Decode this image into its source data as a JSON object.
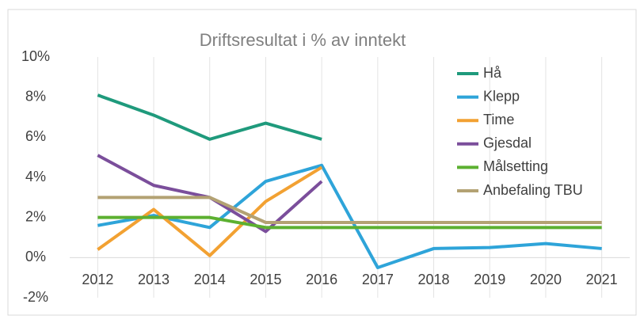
{
  "chart_data": {
    "type": "line",
    "title": "Driftsresultat i % av inntekt",
    "categories": [
      "2012",
      "2013",
      "2014",
      "2015",
      "2016",
      "2017",
      "2018",
      "2019",
      "2020",
      "2021"
    ],
    "series": [
      {
        "name": "Hå",
        "color": "#1f9a7c",
        "values": [
          8.1,
          7.1,
          5.9,
          6.7,
          5.9,
          null,
          null,
          null,
          null,
          null
        ]
      },
      {
        "name": "Klepp",
        "color": "#2ea4d9",
        "values": [
          1.6,
          2.1,
          1.5,
          3.8,
          4.6,
          -0.5,
          0.45,
          0.5,
          0.7,
          0.45
        ]
      },
      {
        "name": "Time",
        "color": "#f2a132",
        "values": [
          0.4,
          2.4,
          0.1,
          2.8,
          4.5,
          null,
          null,
          null,
          null,
          null
        ]
      },
      {
        "name": "Gjesdal",
        "color": "#7b4e9b",
        "values": [
          5.1,
          3.6,
          3.0,
          1.3,
          3.8,
          null,
          null,
          null,
          null,
          null
        ]
      },
      {
        "name": "Målsetting",
        "color": "#5cb031",
        "values": [
          2.0,
          2.0,
          2.0,
          1.5,
          1.5,
          1.5,
          1.5,
          1.5,
          1.5,
          1.5
        ]
      },
      {
        "name": "Anbefaling TBU",
        "color": "#b3a273",
        "values": [
          3.0,
          3.0,
          3.0,
          1.75,
          1.75,
          1.75,
          1.75,
          1.75,
          1.75,
          1.75
        ]
      }
    ],
    "ylim": [
      -2,
      10
    ],
    "yticks": [
      {
        "value": -2,
        "label": "-2%"
      },
      {
        "value": 0,
        "label": "0%"
      },
      {
        "value": 2,
        "label": "2%"
      },
      {
        "value": 4,
        "label": "4%"
      },
      {
        "value": 6,
        "label": "6%"
      },
      {
        "value": 8,
        "label": "8%"
      },
      {
        "value": 10,
        "label": "10%"
      }
    ],
    "grid": true,
    "legend": "right"
  }
}
